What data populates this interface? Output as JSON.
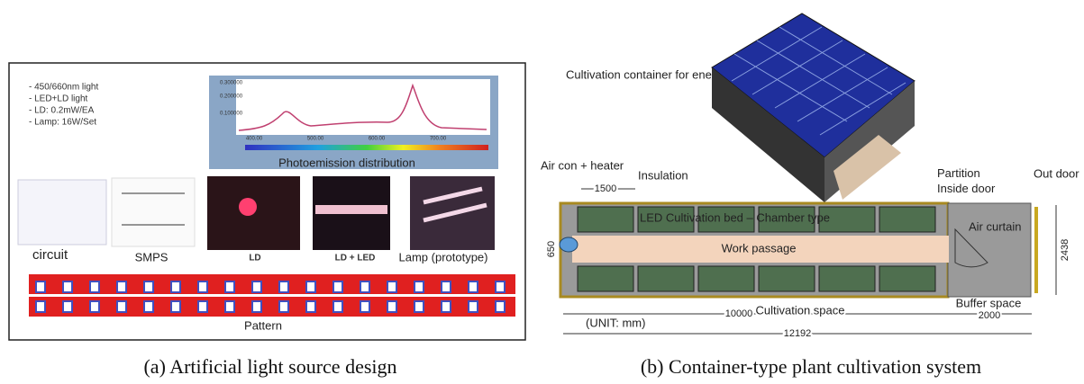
{
  "panel_a": {
    "specs": [
      "- 450/660nm light",
      "- LED+LD light",
      "- LD: 0.2mW/EA",
      "- Lamp: 16W/Set"
    ],
    "graph_yticks": [
      "0.300000",
      "0.200000",
      "0.100000"
    ],
    "graph_xticks": [
      "400.00",
      "500.00",
      "600.00",
      "700.00"
    ],
    "graph_title": "Photoemission distribution",
    "images": [
      "circuit",
      "SMPS",
      "LD",
      "LD + LED",
      "Lamp (prototype)"
    ],
    "pattern": "Pattern",
    "caption": "(a) Artificial light source design"
  },
  "panel_b": {
    "container_title": "Cultivation container for energy self-reliance",
    "air_con": "Air con + heater",
    "insulation": "Insulation",
    "partition": "Partition Inside door",
    "out_door": "Out door",
    "bed_spacing": 1500,
    "bed_label": "LED Cultivation bed – Chamber type",
    "air_curtain": "Air curtain",
    "passage_width": 650,
    "work_passage": "Work passage",
    "width": 2438,
    "buffer_space": "Buffer space",
    "cultivation_length": 10000,
    "cultivation_space": "Cultivation space",
    "buffer_length": 2000,
    "unit": "(UNIT: mm)",
    "total_length": 12192,
    "caption": "(b) Container-type plant cultivation system"
  }
}
